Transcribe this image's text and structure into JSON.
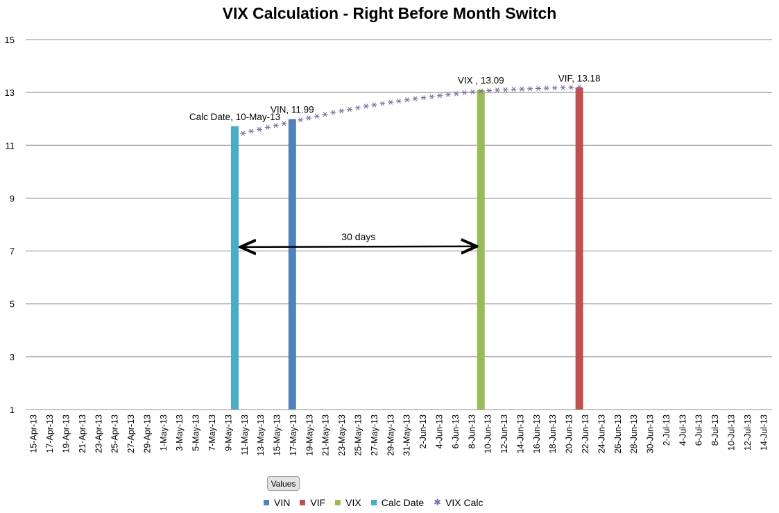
{
  "chart_data": {
    "type": "bar",
    "title": "VIX Calculation - Right Before Month Switch",
    "xlabel": "",
    "ylabel": "",
    "ylim": [
      1,
      15
    ],
    "yticks": [
      1,
      3,
      5,
      7,
      9,
      11,
      13,
      15
    ],
    "grid": true,
    "legend_position": "bottom",
    "x_start": "2013-04-15",
    "x_end": "2013-07-15",
    "x_tick_labels": [
      "15-Apr-13",
      "17-Apr-13",
      "19-Apr-13",
      "21-Apr-13",
      "23-Apr-13",
      "25-Apr-13",
      "27-Apr-13",
      "29-Apr-13",
      "1-May-13",
      "3-May-13",
      "5-May-13",
      "7-May-13",
      "9-May-13",
      "11-May-13",
      "13-May-13",
      "15-May-13",
      "17-May-13",
      "19-May-13",
      "21-May-13",
      "23-May-13",
      "25-May-13",
      "27-May-13",
      "29-May-13",
      "31-May-13",
      "2-Jun-13",
      "4-Jun-13",
      "6-Jun-13",
      "8-Jun-13",
      "10-Jun-13",
      "12-Jun-13",
      "14-Jun-13",
      "16-Jun-13",
      "18-Jun-13",
      "20-Jun-13",
      "22-Jun-13",
      "24-Jun-13",
      "26-Jun-13",
      "28-Jun-13",
      "30-Jun-13",
      "2-Jul-13",
      "4-Jul-13",
      "6-Jul-13",
      "8-Jul-13",
      "10-Jul-13",
      "12-Jul-13",
      "14-Jul-13"
    ],
    "bar_series": [
      {
        "name": "VIN",
        "color": "#4f81bd",
        "x": "2013-05-17",
        "value": 11.99,
        "label": "VIN, 11.99"
      },
      {
        "name": "VIF",
        "color": "#c0504d",
        "x": "2013-06-21",
        "value": 13.18,
        "label": "VIF, 13.18"
      },
      {
        "name": "VIX",
        "color": "#9bbb59",
        "x": "2013-06-09",
        "value": 13.09,
        "label": "VIX , 13.09"
      },
      {
        "name": "Calc Date",
        "color": "#4bacc6",
        "x": "2013-05-10",
        "value": 11.72,
        "label": "Calc Date, 10-May-13"
      }
    ],
    "line_series": {
      "name": "VIX Calc",
      "color": "#7f6a9e",
      "marker": "asterisk",
      "points": [
        [
          "2013-05-11",
          11.45
        ],
        [
          "2013-05-12",
          11.53
        ],
        [
          "2013-05-13",
          11.6
        ],
        [
          "2013-05-14",
          11.68
        ],
        [
          "2013-05-15",
          11.75
        ],
        [
          "2013-05-16",
          11.82
        ],
        [
          "2013-05-17",
          11.89
        ],
        [
          "2013-05-18",
          11.96
        ],
        [
          "2013-05-19",
          12.03
        ],
        [
          "2013-05-20",
          12.1
        ],
        [
          "2013-05-21",
          12.17
        ],
        [
          "2013-05-22",
          12.24
        ],
        [
          "2013-05-23",
          12.3
        ],
        [
          "2013-05-24",
          12.36
        ],
        [
          "2013-05-25",
          12.42
        ],
        [
          "2013-05-26",
          12.48
        ],
        [
          "2013-05-27",
          12.53
        ],
        [
          "2013-05-28",
          12.58
        ],
        [
          "2013-05-29",
          12.63
        ],
        [
          "2013-05-30",
          12.67
        ],
        [
          "2013-05-31",
          12.72
        ],
        [
          "2013-06-01",
          12.76
        ],
        [
          "2013-06-02",
          12.8
        ],
        [
          "2013-06-03",
          12.84
        ],
        [
          "2013-06-04",
          12.88
        ],
        [
          "2013-06-05",
          12.92
        ],
        [
          "2013-06-06",
          12.95
        ],
        [
          "2013-06-07",
          12.99
        ],
        [
          "2013-06-08",
          13.02
        ],
        [
          "2013-06-09",
          13.05
        ],
        [
          "2013-06-10",
          13.07
        ],
        [
          "2013-06-11",
          13.09
        ],
        [
          "2013-06-12",
          13.1
        ],
        [
          "2013-06-13",
          13.12
        ],
        [
          "2013-06-14",
          13.13
        ],
        [
          "2013-06-15",
          13.14
        ],
        [
          "2013-06-16",
          13.15
        ],
        [
          "2013-06-17",
          13.16
        ],
        [
          "2013-06-18",
          13.17
        ],
        [
          "2013-06-19",
          13.18
        ],
        [
          "2013-06-20",
          13.19
        ],
        [
          "2013-06-21",
          13.2
        ]
      ]
    },
    "annotation": {
      "text": "30 days",
      "from": "2013-05-10",
      "to": "2013-06-09",
      "y": 7.15
    }
  },
  "legend": {
    "button_label": "Values",
    "items": [
      {
        "label": "VIN",
        "color": "#4f81bd",
        "kind": "square"
      },
      {
        "label": "VIF",
        "color": "#c0504d",
        "kind": "square"
      },
      {
        "label": "VIX",
        "color": "#9bbb59",
        "kind": "square"
      },
      {
        "label": "Calc Date",
        "color": "#4bacc6",
        "kind": "square"
      },
      {
        "label": "VIX Calc",
        "color": "#7f6a9e",
        "kind": "marker",
        "icon": "asterisk-marker-icon"
      }
    ]
  }
}
